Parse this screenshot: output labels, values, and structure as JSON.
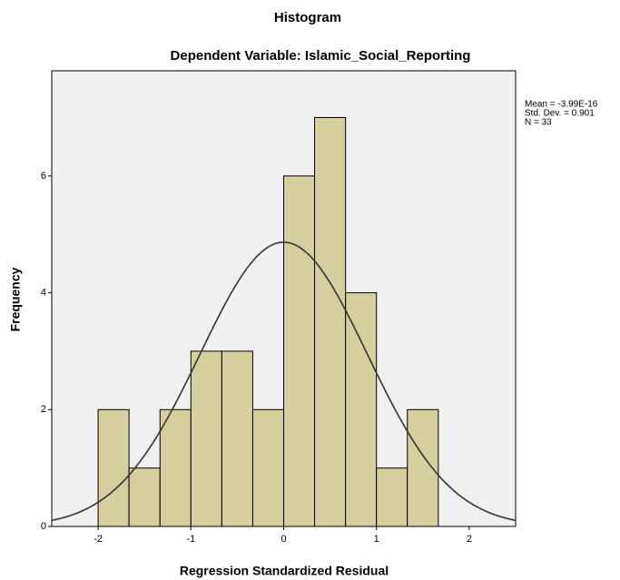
{
  "chart_data": {
    "type": "histogram",
    "title": "Histogram",
    "subtitle": "Dependent Variable: Islamic_Social_Reporting",
    "x_label": "Regression Standardized Residual",
    "y_label": "Frequency",
    "bins": [
      -2,
      -1.667,
      -1.333,
      -1,
      -0.667,
      -0.333,
      0,
      0.333,
      0.667,
      1,
      1.333,
      1.667
    ],
    "values": [
      2,
      1,
      2,
      3,
      3,
      2,
      6,
      7,
      4,
      1,
      2
    ],
    "color": "#d5cf9e",
    "xlim": [
      -2.5,
      2.5
    ],
    "xticks": [
      -2,
      -1,
      0,
      1,
      2
    ],
    "ylim": [
      0,
      7.8
    ],
    "yticks": [
      0,
      2,
      4,
      6
    ],
    "stats": [
      {
        "value": -3.99e-16,
        "label": "Mean = -3.99E-16"
      },
      {
        "value": 0.901,
        "label": "Std. Dev. = 0.901"
      },
      {
        "value": 33,
        "label": "N = 33"
      }
    ]
  }
}
